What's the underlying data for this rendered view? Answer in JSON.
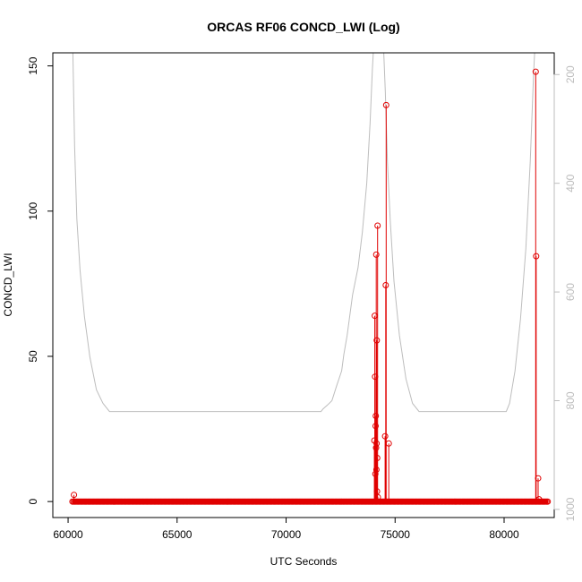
{
  "chart_data": {
    "type": "line",
    "title": "ORCAS RF06 CONCD_LWI (Log)",
    "xlabel": "UTC Seconds",
    "ylabel": "CONCD_LWI",
    "xlim": [
      59300,
      82300
    ],
    "ylim": [
      -5.5,
      154.5
    ],
    "x_ticks": [
      60000,
      65000,
      70000,
      75000,
      80000
    ],
    "y_ticks": [
      0,
      50,
      100,
      150
    ],
    "y2_label": "",
    "y2_lim_top_to_bottom": [
      160,
      1015
    ],
    "y2_ticks": [
      200,
      400,
      600,
      800,
      1000
    ],
    "grid": false,
    "series": [
      {
        "color": "#e00000",
        "marker": "open-circle",
        "baseline_range": [
          60200,
          82000
        ],
        "baseline_value": 0,
        "points": [
          [
            60270,
            2.3
          ],
          [
            74050,
            21.0
          ],
          [
            74070,
            64.0
          ],
          [
            74080,
            43.0
          ],
          [
            74095,
            9.5
          ],
          [
            74105,
            26.0
          ],
          [
            74115,
            29.5
          ],
          [
            74125,
            18.5
          ],
          [
            74135,
            85.0
          ],
          [
            74145,
            11.0
          ],
          [
            74150,
            20.0
          ],
          [
            74160,
            55.5
          ],
          [
            74170,
            3.5
          ],
          [
            74180,
            15.0
          ],
          [
            74195,
            95.0
          ],
          [
            74210,
            1.5
          ],
          [
            74540,
            22.5
          ],
          [
            74570,
            74.5
          ],
          [
            74590,
            136.5
          ],
          [
            74710,
            20.0
          ],
          [
            81450,
            148.0
          ],
          [
            81470,
            84.5
          ],
          [
            81560,
            8.0
          ],
          [
            81600,
            0.8
          ]
        ]
      },
      {
        "color": "#bdbdbd",
        "axis": "right",
        "points": [
          [
            60220,
            160
          ],
          [
            60300,
            330
          ],
          [
            60400,
            465
          ],
          [
            60550,
            560
          ],
          [
            60750,
            645
          ],
          [
            61000,
            720
          ],
          [
            61300,
            780
          ],
          [
            61600,
            805
          ],
          [
            61900,
            820
          ],
          [
            71600,
            820
          ],
          [
            71700,
            815
          ],
          [
            71900,
            808
          ],
          [
            72100,
            800
          ],
          [
            72300,
            775
          ],
          [
            72550,
            745
          ],
          [
            72650,
            715
          ],
          [
            72800,
            680
          ],
          [
            73050,
            605
          ],
          [
            73300,
            555
          ],
          [
            73500,
            490
          ],
          [
            73700,
            400
          ],
          [
            73850,
            290
          ],
          [
            73960,
            190
          ],
          [
            74000,
            160
          ],
          [
            74480,
            160
          ],
          [
            74550,
            230
          ],
          [
            74650,
            360
          ],
          [
            74780,
            470
          ],
          [
            74950,
            580
          ],
          [
            75200,
            680
          ],
          [
            75500,
            760
          ],
          [
            75800,
            805
          ],
          [
            76100,
            820
          ],
          [
            80100,
            820
          ],
          [
            80250,
            805
          ],
          [
            80500,
            745
          ],
          [
            80750,
            650
          ],
          [
            81000,
            520
          ],
          [
            81200,
            360
          ],
          [
            81350,
            200
          ],
          [
            81400,
            160
          ]
        ]
      }
    ]
  }
}
